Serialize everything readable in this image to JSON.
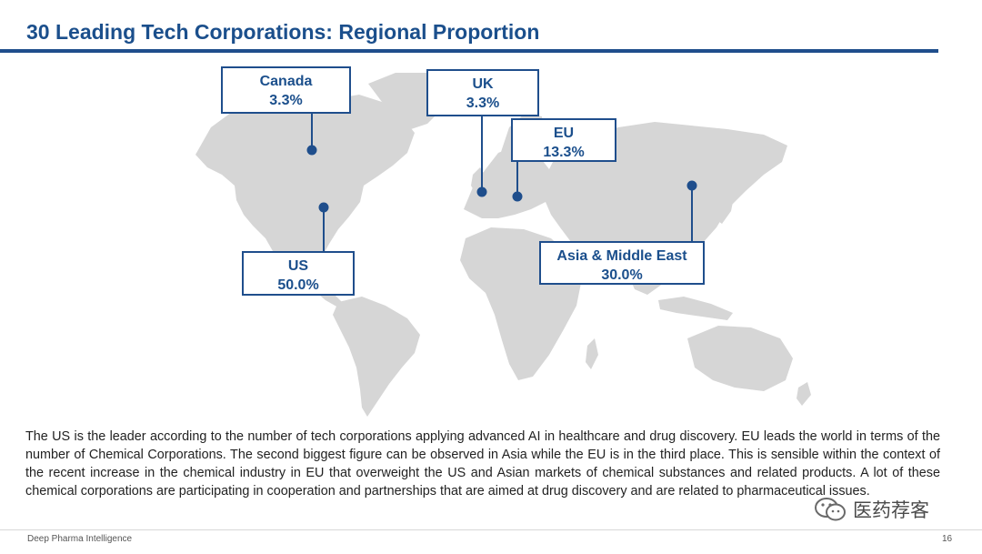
{
  "slide": {
    "title": "30 Leading Tech Corporations: Regional Proportion",
    "page_number": "16",
    "footer_brand": "Deep Pharma Intelligence"
  },
  "regions": [
    {
      "name": "Canada",
      "percent": "3.3%"
    },
    {
      "name": "UK",
      "percent": "3.3%"
    },
    {
      "name": "EU",
      "percent": "13.3%"
    },
    {
      "name": "US",
      "percent": "50.0%"
    },
    {
      "name": "Asia & Middle East",
      "percent": "30.0%"
    }
  ],
  "description": "The US is the leader according to the number of tech corporations applying advanced AI in healthcare and drug discovery. EU leads the world in terms of the number of Chemical Corporations. The second biggest figure can be observed in Asia while the EU is in the third place. This is sensible within the context of the recent increase in the chemical industry in EU that overweight the US and Asian markets of chemical substances and related products. A lot of these chemical corporations are participating in cooperation and partnerships that are aimed at drug discovery and are related to pharmaceutical issues.",
  "watermark": {
    "text": "医药荐客"
  },
  "colors": {
    "accent": "#1f4e8c",
    "map_land": "#d6d6d6"
  }
}
